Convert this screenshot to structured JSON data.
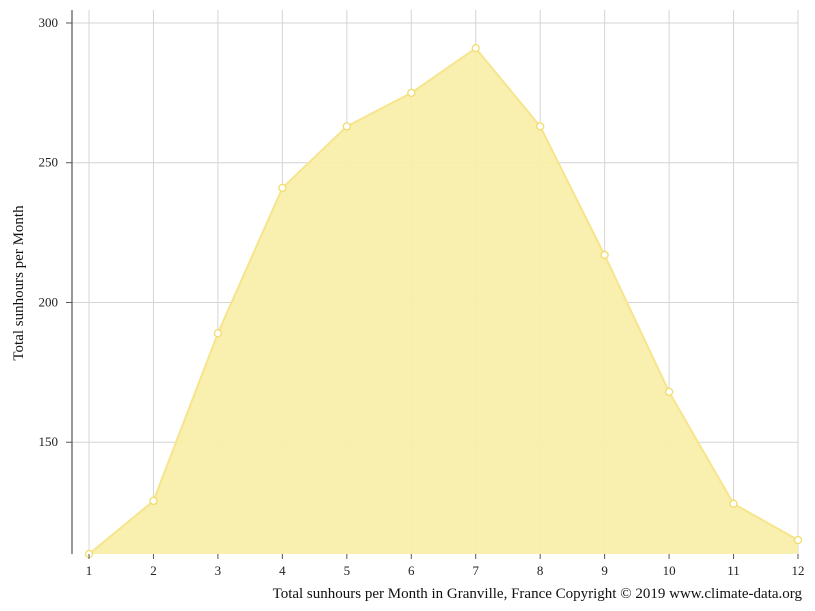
{
  "chart_data": {
    "type": "area",
    "title": "",
    "xlabel": "",
    "ylabel": "Total sunhours per Month",
    "caption": "Total sunhours per Month in Granville, France Copyright © 2019 www.climate-data.org",
    "categories": [
      "1",
      "2",
      "3",
      "4",
      "5",
      "6",
      "7",
      "8",
      "9",
      "10",
      "11",
      "12"
    ],
    "x": [
      1,
      2,
      3,
      4,
      5,
      6,
      7,
      8,
      9,
      10,
      11,
      12
    ],
    "values": [
      110,
      129,
      189,
      241,
      263,
      275,
      291,
      263,
      217,
      168,
      128,
      115
    ],
    "y_ticks": [
      150,
      200,
      250,
      300
    ],
    "ylim": [
      110,
      305
    ],
    "xlim": [
      1,
      12
    ],
    "grid": true,
    "colors": {
      "fill": "#f9eeaa",
      "line": "#f6e58c",
      "marker_stroke": "#f2dc6a",
      "marker_fill": "#ffffff",
      "grid": "#d4d4d4",
      "axis": "#555555"
    }
  }
}
